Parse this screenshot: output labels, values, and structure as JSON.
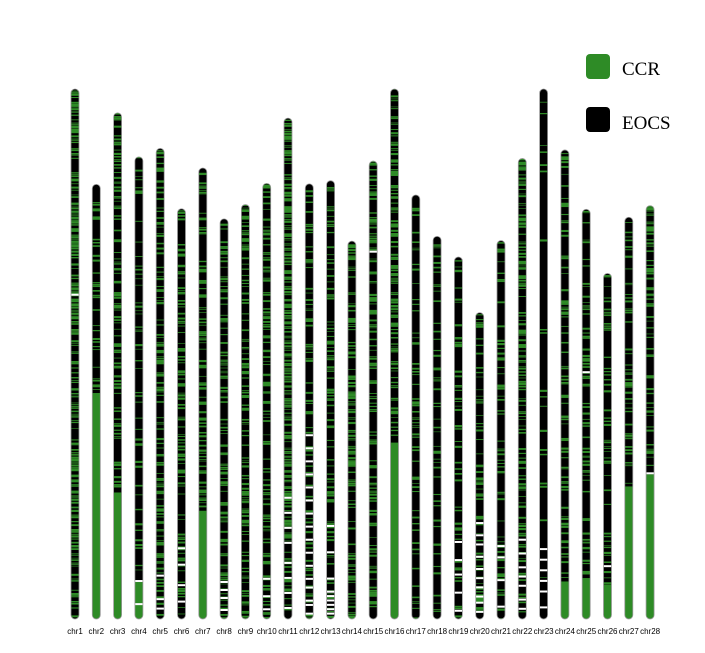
{
  "legend": [
    {
      "label": "CCR",
      "color": "#2e8b26"
    },
    {
      "label": "EOCS",
      "color": "#000000"
    }
  ],
  "colors": {
    "ccr": "#2e8b26",
    "eocs": "#000000",
    "gap": "#ffffff",
    "outline": "#9a9a9a"
  },
  "chromosomes": [
    {
      "name": "chr1",
      "length": 100,
      "green_bottom": 0.0,
      "green_mix": 0.55,
      "gaps": [
        61
      ]
    },
    {
      "name": "chr2",
      "length": 82.0,
      "green_bottom": 0.52,
      "green_mix": 0.3,
      "gaps": []
    },
    {
      "name": "chr3",
      "length": 95.5,
      "green_bottom": 0.25,
      "green_mix": 0.35,
      "gaps": []
    },
    {
      "name": "chr4",
      "length": 87.2,
      "green_bottom": 0.08,
      "green_mix": 0.2,
      "gaps": [
        3,
        8
      ]
    },
    {
      "name": "chr5",
      "length": 88.8,
      "green_bottom": 0.0,
      "green_mix": 0.38,
      "gaps": [
        2,
        4,
        9
      ]
    },
    {
      "name": "chr6",
      "length": 77.4,
      "green_bottom": 0.0,
      "green_mix": 0.3,
      "gaps": [
        4,
        8,
        13,
        17
      ]
    },
    {
      "name": "chr7",
      "length": 85.1,
      "green_bottom": 0.24,
      "green_mix": 0.3,
      "gaps": []
    },
    {
      "name": "chr8",
      "length": 75.5,
      "green_bottom": 0.0,
      "green_mix": 0.35,
      "gaps": [
        2,
        5,
        7,
        9
      ]
    },
    {
      "name": "chr9",
      "length": 78.2,
      "green_bottom": 0.0,
      "green_mix": 0.38,
      "gaps": []
    },
    {
      "name": "chr10",
      "length": 82.2,
      "green_bottom": 0.0,
      "green_mix": 0.35,
      "gaps": [
        2,
        5,
        9
      ]
    },
    {
      "name": "chr11",
      "length": 94.5,
      "green_bottom": 0.0,
      "green_mix": 0.6,
      "gaps": [
        2,
        5,
        8,
        11,
        15,
        18,
        21,
        24
      ]
    },
    {
      "name": "chr12",
      "length": 82.1,
      "green_bottom": 0.0,
      "green_mix": 0.25,
      "gaps": [
        1,
        3,
        4,
        7,
        9,
        12,
        15,
        18,
        21,
        24,
        27,
        30,
        33,
        36,
        39,
        42
      ]
    },
    {
      "name": "chr13",
      "length": 82.7,
      "green_bottom": 0.0,
      "green_mix": 0.3,
      "gaps": [
        1,
        2,
        3,
        4,
        5,
        6,
        9,
        15,
        21
      ]
    },
    {
      "name": "chr14",
      "length": 71.3,
      "green_bottom": 0.0,
      "green_mix": 0.4,
      "gaps": []
    },
    {
      "name": "chr15",
      "length": 86.4,
      "green_bottom": 0.0,
      "green_mix": 0.4,
      "gaps": [
        80
      ]
    },
    {
      "name": "chr16",
      "length": 100,
      "green_bottom": 0.33,
      "green_mix": 0.45,
      "gaps": []
    },
    {
      "name": "chr17",
      "length": 80.0,
      "green_bottom": 0.0,
      "green_mix": 0.25,
      "gaps": []
    },
    {
      "name": "chr18",
      "length": 72.2,
      "green_bottom": 0.0,
      "green_mix": 0.25,
      "gaps": []
    },
    {
      "name": "chr19",
      "length": 68.3,
      "green_bottom": 0.0,
      "green_mix": 0.2,
      "gaps": [
        2,
        7,
        12,
        16,
        21
      ]
    },
    {
      "name": "chr20",
      "length": 57.8,
      "green_bottom": 0.0,
      "green_mix": 0.3,
      "gaps": [
        2,
        5,
        7,
        10,
        13,
        16,
        20,
        24,
        27,
        31
      ]
    },
    {
      "name": "chr21",
      "length": 71.4,
      "green_bottom": 0.0,
      "green_mix": 0.25,
      "gaps": [
        3,
        10,
        16,
        19
      ]
    },
    {
      "name": "chr22",
      "length": 86.9,
      "green_bottom": 0.0,
      "green_mix": 0.4,
      "gaps": [
        2,
        4,
        7,
        9,
        11,
        14,
        17
      ]
    },
    {
      "name": "chr23",
      "length": 100,
      "green_bottom": 0.0,
      "green_mix": 0.05,
      "gaps": [
        2,
        5,
        7,
        9,
        11,
        13
      ]
    },
    {
      "name": "chr24",
      "length": 88.5,
      "green_bottom": 0.08,
      "green_mix": 0.3,
      "gaps": []
    },
    {
      "name": "chr25",
      "length": 77.3,
      "green_bottom": 0.1,
      "green_mix": 0.25,
      "gaps": [
        60
      ]
    },
    {
      "name": "chr26",
      "length": 65.2,
      "green_bottom": 0.1,
      "green_mix": 0.2,
      "gaps": [
        15
      ]
    },
    {
      "name": "chr27",
      "length": 75.8,
      "green_bottom": 0.33,
      "green_mix": 0.25,
      "gaps": []
    },
    {
      "name": "chr28",
      "length": 78.0,
      "green_bottom": 0.35,
      "green_mix": 0.3,
      "gaps": [
        35
      ]
    }
  ]
}
